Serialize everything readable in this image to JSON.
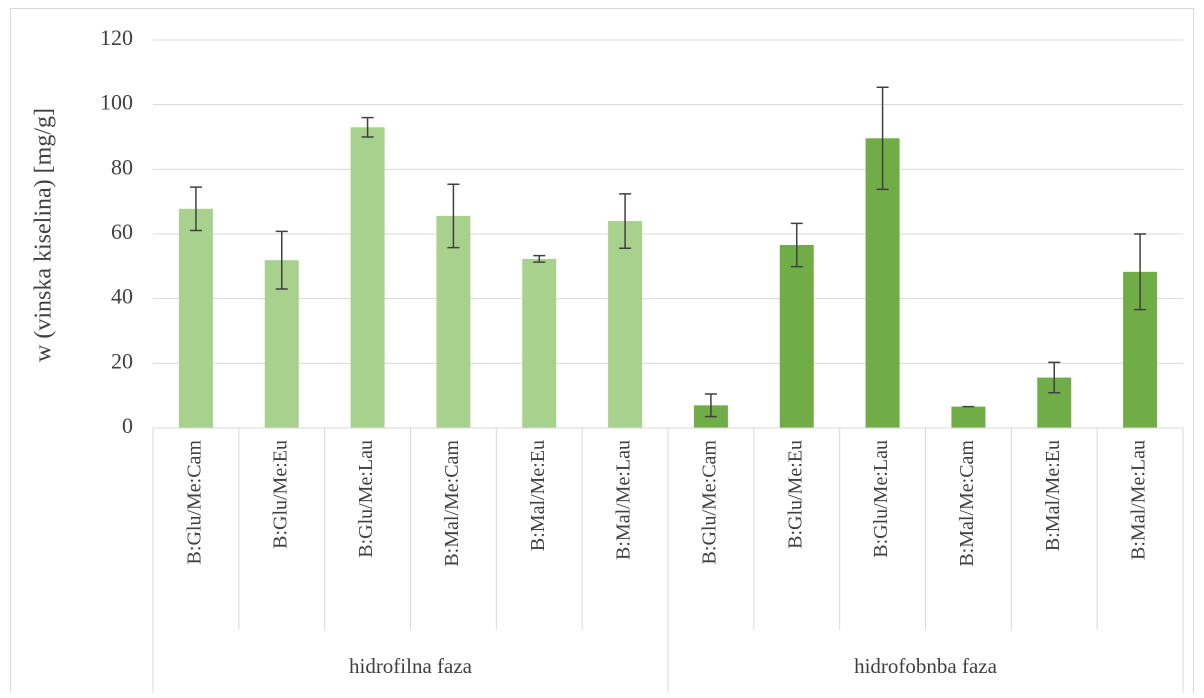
{
  "chart_data": {
    "type": "bar",
    "y_label": "w (vinska kiselina) [mg/g]",
    "ylim": [
      0,
      120
    ],
    "yticks": [
      0,
      20,
      40,
      60,
      80,
      100,
      120
    ],
    "grid": true,
    "groups": [
      {
        "label": "hidrofilna faza",
        "color": "#a9d18e",
        "categories": [
          "B:Glu/Me:Cam",
          "B:Glu/Me:Eu",
          "B:Glu/Me:Lau",
          "B:Mal/Me:Cam",
          "B:Mal/Me:Eu",
          "B:Mal/Me:Lau"
        ],
        "values": [
          67.8,
          51.9,
          93,
          65.6,
          52.3,
          64
        ],
        "errors": [
          6.7,
          8.9,
          3,
          9.8,
          1,
          8.4
        ]
      },
      {
        "label": "hidrofobnba faza",
        "color": "#70ad47",
        "categories": [
          "B:Glu/Me:Cam",
          "B:Glu/Me:Eu",
          "B:Glu/Me:Lau",
          "B:Mal/Me:Cam",
          "B:Mal/Me:Eu",
          "B:Mal/Me:Lau"
        ],
        "values": [
          7,
          56.6,
          89.6,
          6.6,
          15.6,
          48.3
        ],
        "errors": [
          3.5,
          6.7,
          15.8,
          0,
          4.7,
          11.7
        ]
      }
    ]
  }
}
